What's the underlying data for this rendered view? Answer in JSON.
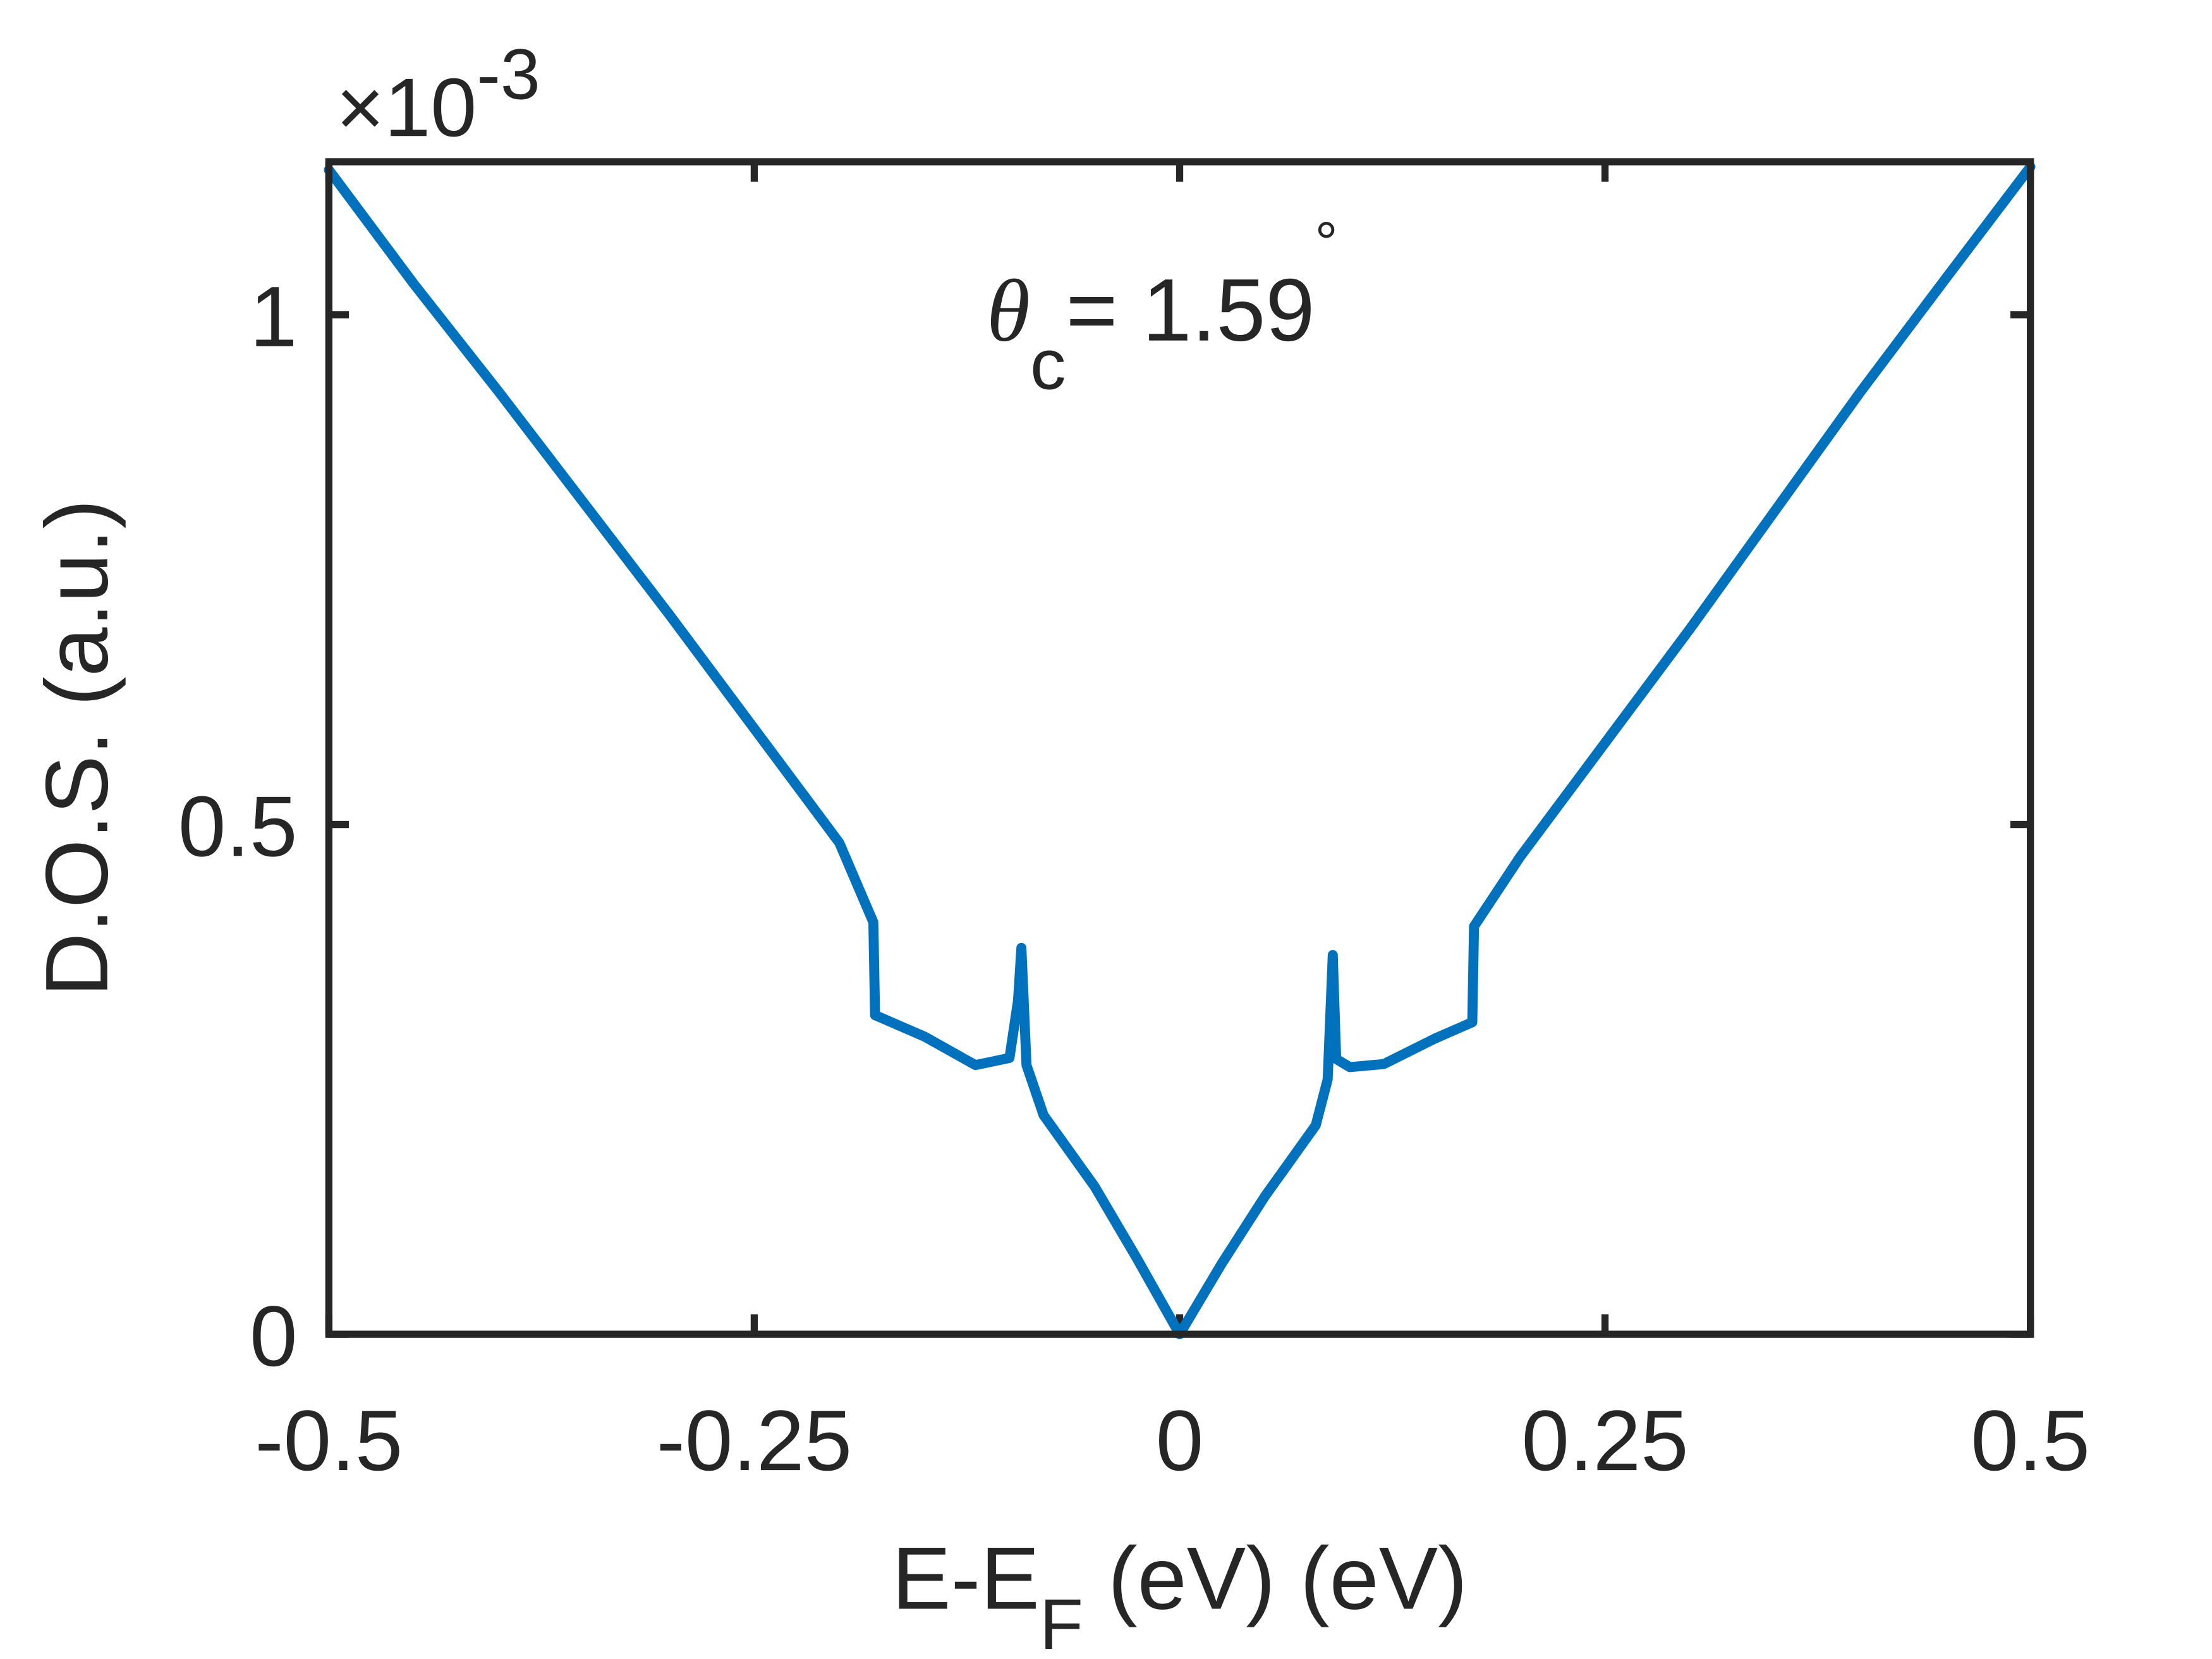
{
  "chart_data": {
    "type": "line",
    "x": [
      -0.5,
      -0.45,
      -0.4,
      -0.35,
      -0.3,
      -0.25,
      -0.2,
      -0.18,
      -0.179,
      -0.15,
      -0.12,
      -0.1,
      -0.095,
      -0.093,
      -0.09,
      -0.08,
      -0.05,
      -0.025,
      0,
      0.025,
      0.05,
      0.08,
      0.087,
      0.09,
      0.092,
      0.1,
      0.12,
      0.15,
      0.172,
      0.173,
      0.2,
      0.25,
      0.3,
      0.35,
      0.4,
      0.45,
      0.5
    ],
    "values": [
      1.142,
      1.03,
      0.924,
      0.815,
      0.706,
      0.594,
      0.482,
      0.404,
      0.313,
      0.292,
      0.264,
      0.271,
      0.327,
      0.379,
      0.264,
      0.215,
      0.145,
      0.074,
      0,
      0.07,
      0.135,
      0.205,
      0.25,
      0.372,
      0.27,
      0.262,
      0.265,
      0.29,
      0.306,
      0.4,
      0.468,
      0.58,
      0.692,
      0.808,
      0.924,
      1.035,
      1.145
    ],
    "color": "#0072bd",
    "xlim": [
      -0.5,
      0.5
    ],
    "xticks": [
      -0.5,
      -0.25,
      0,
      0.25,
      0.5
    ],
    "ylim": [
      0,
      1.15
    ],
    "yticks": [
      0,
      0.5,
      1
    ],
    "y_multiplier": {
      "base": "×10",
      "power": "-3"
    },
    "xlabel": {
      "text": "E-E",
      "subscript": "F",
      "suffix": " (eV) (eV)"
    },
    "ylabel": "D.O.S. (a.u.)",
    "annotation": {
      "symbol": "θ",
      "subscript": "c",
      "text": "= 1.59",
      "superscript": "°"
    }
  }
}
